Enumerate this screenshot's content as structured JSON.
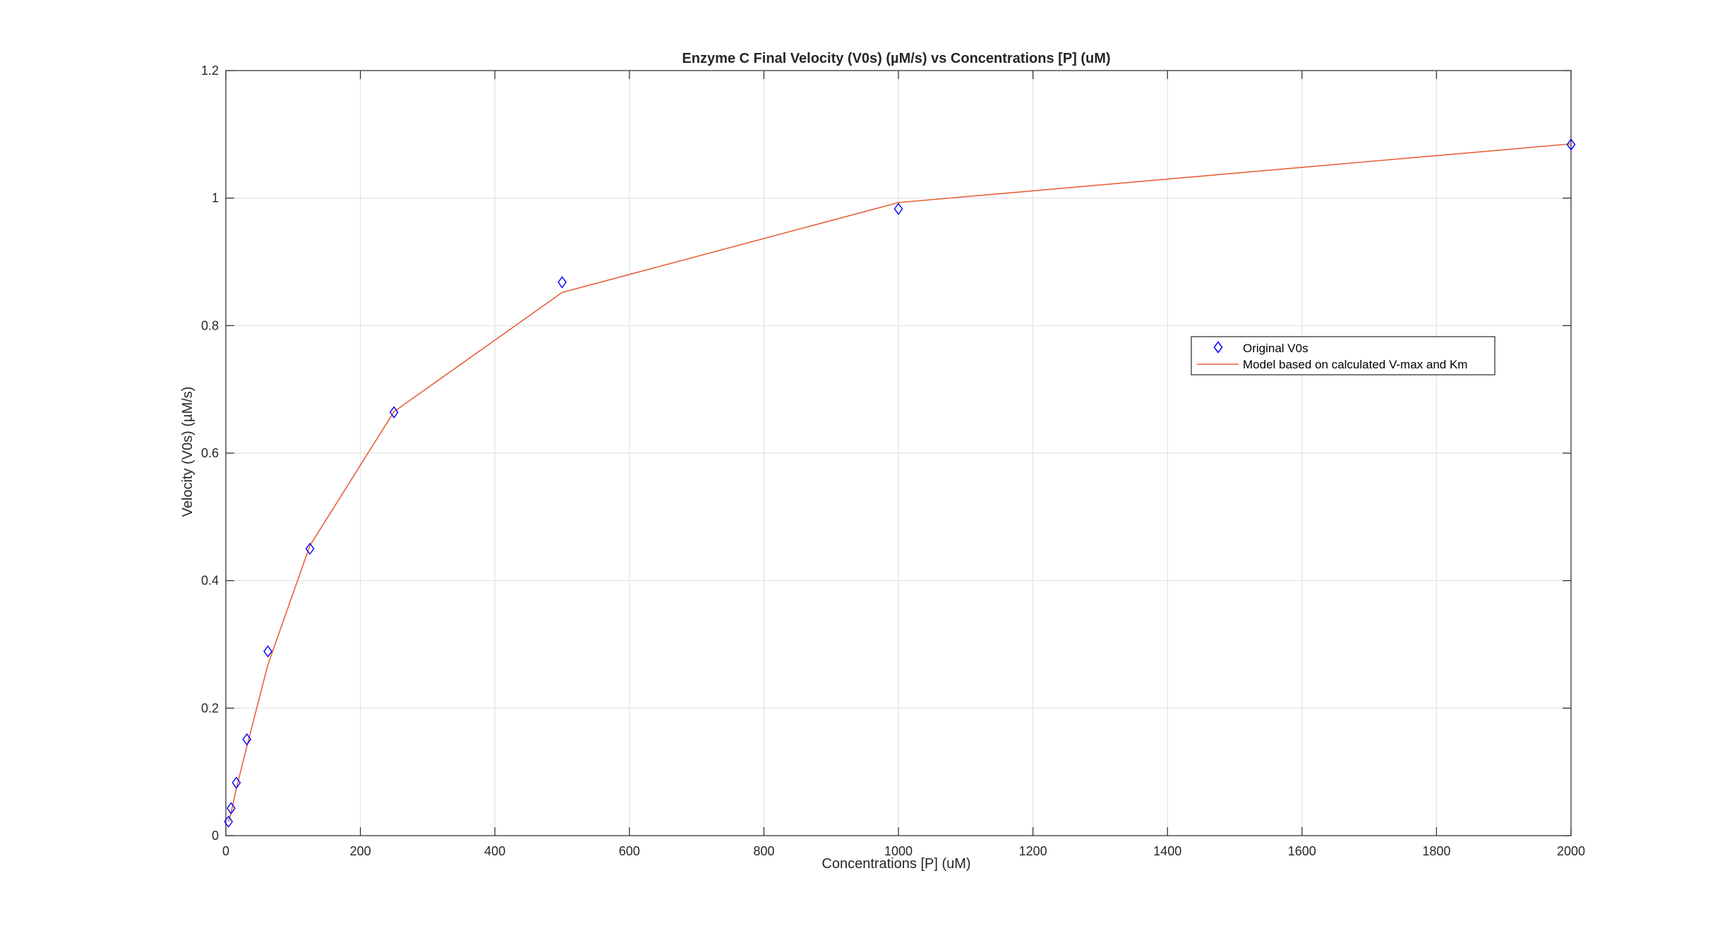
{
  "chart_data": {
    "type": "line",
    "title": "Enzyme C Final Velocity (V0s) (µM/s) vs Concentrations [P] (uM)",
    "xlabel": "Concentrations [P] (uM)",
    "ylabel": "Velocity (V0s) (µM/s)",
    "xlim": [
      0,
      2000
    ],
    "ylim": [
      0,
      1.2
    ],
    "xticks": [
      0,
      200,
      400,
      600,
      800,
      1000,
      1200,
      1400,
      1600,
      1800,
      2000
    ],
    "xtick_labels": [
      "0",
      "200",
      "400",
      "600",
      "800",
      "1000",
      "1200",
      "1400",
      "1600",
      "1800",
      "2000"
    ],
    "yticks": [
      0,
      0.2,
      0.4,
      0.6,
      0.8,
      1.0,
      1.2
    ],
    "ytick_labels": [
      "0",
      "0.2",
      "0.4",
      "0.6",
      "0.8",
      "1",
      "1.2"
    ],
    "grid": true,
    "legend_position": "center-right",
    "series": [
      {
        "name": "Original V0s",
        "kind": "scatter",
        "marker": "diamond",
        "color": "#0000ff",
        "x": [
          3.9,
          7.8,
          15.6,
          31.25,
          62.5,
          125,
          250,
          500,
          1000,
          2000
        ],
        "y": [
          0.022,
          0.043,
          0.083,
          0.151,
          0.289,
          0.45,
          0.664,
          0.868,
          0.983,
          1.084
        ]
      },
      {
        "name": "Model based on calculated V-max and Km",
        "kind": "line",
        "color": "#e8613a",
        "x": [
          3.9,
          7.8,
          15.6,
          31.25,
          62.5,
          125,
          250,
          500,
          1000,
          2000
        ],
        "y": [
          0.022,
          0.036,
          0.074,
          0.14,
          0.268,
          0.455,
          0.665,
          0.852,
          0.993,
          1.085
        ]
      }
    ]
  }
}
